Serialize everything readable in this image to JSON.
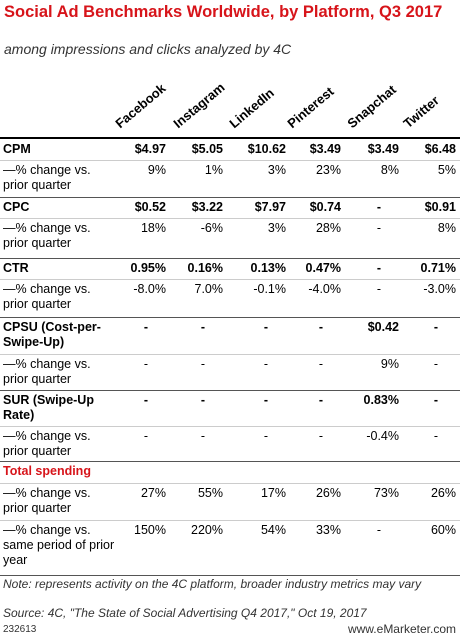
{
  "header": {
    "title": "Social Ad Benchmarks Worldwide, by Platform, Q3 2017",
    "subtitle": "among impressions and clicks analyzed by 4C"
  },
  "table": {
    "columns": [
      "Facebook",
      "Instagram",
      "LinkedIn",
      "Pinterest",
      "Snapchat",
      "Twitter"
    ],
    "rows": [
      [
        "CPM",
        "$4.97",
        "$5.05",
        "$10.62",
        "$3.49",
        "$3.49",
        "$6.48"
      ],
      [
        "—% change vs. prior quarter",
        "9%",
        "1%",
        "3%",
        "23%",
        "8%",
        "5%"
      ],
      [
        "CPC",
        "$0.52",
        "$3.22",
        "$7.97",
        "$0.74",
        "-",
        "$0.91"
      ],
      [
        "—% change vs. prior quarter",
        "18%",
        "-6%",
        "3%",
        "28%",
        "-",
        "8%"
      ],
      [
        "CTR",
        "0.95%",
        "0.16%",
        "0.13%",
        "0.47%",
        "-",
        "0.71%"
      ],
      [
        "—% change vs. prior quarter",
        "-8.0%",
        "7.0%",
        "-0.1%",
        "-4.0%",
        "-",
        "-3.0%"
      ],
      [
        "CPSU (Cost-per-Swipe-Up)",
        "-",
        "-",
        "-",
        "-",
        "$0.42",
        "-"
      ],
      [
        "—% change vs. prior quarter",
        "-",
        "-",
        "-",
        "-",
        "9%",
        "-"
      ],
      [
        "SUR (Swipe-Up Rate)",
        "-",
        "-",
        "-",
        "-",
        "0.83%",
        "-"
      ],
      [
        "—% change vs. prior quarter",
        "-",
        "-",
        "-",
        "-",
        "-0.4%",
        "-"
      ],
      [
        "Total spending"
      ],
      [
        "—% change vs. prior quarter",
        "27%",
        "55%",
        "17%",
        "26%",
        "73%",
        "26%"
      ],
      [
        "—% change vs. same period of prior year",
        "150%",
        "220%",
        "54%",
        "33%",
        "-",
        "60%"
      ]
    ]
  },
  "footer": {
    "note": "Note: represents activity on the 4C platform, broader industry metrics may vary",
    "source": "Source: 4C, \"The State of Social Advertising Q4 2017,\" Oct 19, 2017",
    "id": "232613",
    "site": "www.eMarketer.com"
  }
}
